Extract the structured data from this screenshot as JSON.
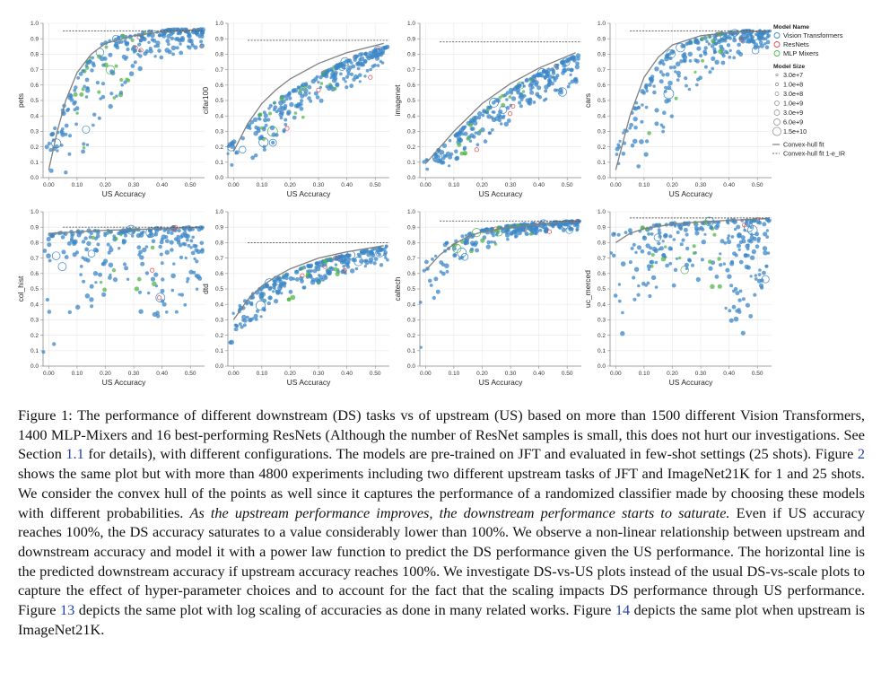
{
  "chart_data": [
    {
      "type": "scatter",
      "ylabel": "pets",
      "xlabel": "US Accuracy",
      "xticks": [
        "0.00",
        "0.10",
        "0.20",
        "0.30",
        "0.40",
        "0.50"
      ],
      "yticks": [
        "0.0",
        "0.1",
        "0.2",
        "0.3",
        "0.4",
        "0.5",
        "0.6",
        "0.7",
        "0.8",
        "0.9",
        "1.0"
      ],
      "xlim": [
        -0.02,
        0.55
      ],
      "ylim": [
        0,
        1
      ],
      "hull_asymptote": 0.95,
      "hull_points": [
        [
          0.0,
          0.05
        ],
        [
          0.03,
          0.3
        ],
        [
          0.06,
          0.5
        ],
        [
          0.1,
          0.68
        ],
        [
          0.15,
          0.8
        ],
        [
          0.2,
          0.87
        ],
        [
          0.3,
          0.92
        ],
        [
          0.4,
          0.945
        ],
        [
          0.53,
          0.96
        ]
      ],
      "point_band": {
        "min_y": [
          0.0,
          0.0,
          0.25,
          0.55,
          0.75,
          0.8,
          0.85
        ],
        "max_y": [
          0.15,
          0.55,
          0.85,
          0.92,
          0.95,
          0.96,
          0.96
        ]
      }
    },
    {
      "type": "scatter",
      "ylabel": "cifar100",
      "xlabel": "US Accuracy",
      "xticks": [
        "0.00",
        "0.10",
        "0.20",
        "0.30",
        "0.40",
        "0.50"
      ],
      "yticks": [
        "0.0",
        "0.1",
        "0.2",
        "0.3",
        "0.4",
        "0.5",
        "0.6",
        "0.7",
        "0.8",
        "0.9",
        "1.0"
      ],
      "xlim": [
        -0.02,
        0.55
      ],
      "ylim": [
        0,
        1
      ],
      "hull_asymptote": 0.89,
      "hull_points": [
        [
          0.0,
          0.17
        ],
        [
          0.05,
          0.35
        ],
        [
          0.1,
          0.48
        ],
        [
          0.15,
          0.57
        ],
        [
          0.2,
          0.64
        ],
        [
          0.3,
          0.74
        ],
        [
          0.4,
          0.81
        ],
        [
          0.53,
          0.87
        ]
      ],
      "point_band": {
        "min_y": [
          0.05,
          0.12,
          0.25,
          0.4,
          0.55,
          0.62,
          0.7
        ],
        "max_y": [
          0.2,
          0.38,
          0.52,
          0.62,
          0.72,
          0.8,
          0.85
        ]
      }
    },
    {
      "type": "scatter",
      "ylabel": "imagenet",
      "xlabel": "US Accuracy",
      "xticks": [
        "0.00",
        "0.10",
        "0.20",
        "0.30",
        "0.40",
        "0.50"
      ],
      "yticks": [
        "0.0",
        "0.1",
        "0.2",
        "0.3",
        "0.4",
        "0.5",
        "0.6",
        "0.7",
        "0.8",
        "0.9",
        "1.0"
      ],
      "xlim": [
        -0.02,
        0.55
      ],
      "ylim": [
        0,
        1
      ],
      "hull_asymptote": 0.88,
      "hull_points": [
        [
          0.0,
          0.09
        ],
        [
          0.1,
          0.3
        ],
        [
          0.2,
          0.48
        ],
        [
          0.3,
          0.61
        ],
        [
          0.4,
          0.71
        ],
        [
          0.53,
          0.81
        ]
      ],
      "point_band": {
        "min_y": [
          0.0,
          0.05,
          0.15,
          0.3,
          0.42,
          0.52,
          0.6
        ],
        "max_y": [
          0.08,
          0.22,
          0.38,
          0.52,
          0.63,
          0.72,
          0.8
        ]
      }
    },
    {
      "type": "scatter",
      "ylabel": "cars",
      "xlabel": "US Accuracy",
      "xticks": [
        "0.00",
        "0.10",
        "0.20",
        "0.30",
        "0.40",
        "0.50"
      ],
      "yticks": [
        "0.0",
        "0.1",
        "0.2",
        "0.3",
        "0.4",
        "0.5",
        "0.6",
        "0.7",
        "0.8",
        "0.9",
        "1.0"
      ],
      "xlim": [
        -0.02,
        0.55
      ],
      "ylim": [
        0,
        1
      ],
      "hull_asymptote": 0.95,
      "hull_points": [
        [
          0.0,
          0.05
        ],
        [
          0.05,
          0.4
        ],
        [
          0.1,
          0.65
        ],
        [
          0.15,
          0.78
        ],
        [
          0.2,
          0.86
        ],
        [
          0.3,
          0.92
        ],
        [
          0.4,
          0.94
        ],
        [
          0.53,
          0.95
        ]
      ],
      "point_band": {
        "min_y": [
          0.0,
          0.05,
          0.3,
          0.55,
          0.72,
          0.8,
          0.85
        ],
        "max_y": [
          0.1,
          0.5,
          0.78,
          0.88,
          0.93,
          0.95,
          0.95
        ]
      }
    },
    {
      "type": "scatter",
      "ylabel": "col_hist",
      "xlabel": "US Accuracy",
      "xticks": [
        "0.00",
        "0.10",
        "0.20",
        "0.30",
        "0.40",
        "0.50"
      ],
      "yticks": [
        "0.0",
        "0.1",
        "0.2",
        "0.3",
        "0.4",
        "0.5",
        "0.6",
        "0.7",
        "0.8",
        "0.9",
        "1.0"
      ],
      "xlim": [
        -0.02,
        0.55
      ],
      "ylim": [
        0,
        1
      ],
      "hull_asymptote": 0.9,
      "hull_points": [
        [
          0.0,
          0.86
        ],
        [
          0.1,
          0.87
        ],
        [
          0.2,
          0.88
        ],
        [
          0.3,
          0.885
        ],
        [
          0.4,
          0.89
        ],
        [
          0.53,
          0.9
        ]
      ],
      "point_band": {
        "min_y": [
          0.0,
          0.3,
          0.4,
          0.45,
          0.3,
          0.3,
          0.55
        ],
        "max_y": [
          0.85,
          0.87,
          0.88,
          0.88,
          0.89,
          0.9,
          0.9
        ]
      }
    },
    {
      "type": "scatter",
      "ylabel": "dtd",
      "xlabel": "US Accuracy",
      "xticks": [
        "0.00",
        "0.10",
        "0.20",
        "0.30",
        "0.40",
        "0.50"
      ],
      "yticks": [
        "0.0",
        "0.1",
        "0.2",
        "0.3",
        "0.4",
        "0.5",
        "0.6",
        "0.7",
        "0.8",
        "0.9",
        "1.0"
      ],
      "xlim": [
        -0.02,
        0.55
      ],
      "ylim": [
        0,
        1
      ],
      "hull_asymptote": 0.8,
      "hull_points": [
        [
          0.0,
          0.3
        ],
        [
          0.05,
          0.43
        ],
        [
          0.1,
          0.52
        ],
        [
          0.15,
          0.58
        ],
        [
          0.2,
          0.63
        ],
        [
          0.3,
          0.7
        ],
        [
          0.4,
          0.74
        ],
        [
          0.53,
          0.78
        ]
      ],
      "point_band": {
        "min_y": [
          0.1,
          0.25,
          0.4,
          0.5,
          0.58,
          0.62,
          0.66
        ],
        "max_y": [
          0.32,
          0.48,
          0.58,
          0.65,
          0.7,
          0.74,
          0.78
        ]
      }
    },
    {
      "type": "scatter",
      "ylabel": "caltech",
      "xlabel": "US Accuracy",
      "xticks": [
        "0.00",
        "0.10",
        "0.20",
        "0.30",
        "0.40",
        "0.50"
      ],
      "yticks": [
        "0.0",
        "0.1",
        "0.2",
        "0.3",
        "0.4",
        "0.5",
        "0.6",
        "0.7",
        "0.8",
        "0.9",
        "1.0"
      ],
      "xlim": [
        -0.02,
        0.55
      ],
      "ylim": [
        0,
        1
      ],
      "hull_asymptote": 0.94,
      "hull_points": [
        [
          0.0,
          0.62
        ],
        [
          0.05,
          0.72
        ],
        [
          0.1,
          0.79
        ],
        [
          0.15,
          0.84
        ],
        [
          0.2,
          0.87
        ],
        [
          0.3,
          0.9
        ],
        [
          0.4,
          0.92
        ],
        [
          0.53,
          0.94
        ]
      ],
      "point_band": {
        "min_y": [
          0.0,
          0.55,
          0.72,
          0.8,
          0.85,
          0.87,
          0.88
        ],
        "max_y": [
          0.65,
          0.8,
          0.87,
          0.9,
          0.92,
          0.93,
          0.94
        ]
      }
    },
    {
      "type": "scatter",
      "ylabel": "uc_merced",
      "xlabel": "US Accuracy",
      "xticks": [
        "0.00",
        "0.10",
        "0.20",
        "0.30",
        "0.40",
        "0.50"
      ],
      "yticks": [
        "0.0",
        "0.1",
        "0.2",
        "0.3",
        "0.4",
        "0.5",
        "0.6",
        "0.7",
        "0.8",
        "0.9",
        "1.0"
      ],
      "xlim": [
        -0.02,
        0.55
      ],
      "ylim": [
        0,
        1
      ],
      "hull_asymptote": 0.96,
      "hull_points": [
        [
          0.0,
          0.8
        ],
        [
          0.05,
          0.86
        ],
        [
          0.1,
          0.89
        ],
        [
          0.2,
          0.92
        ],
        [
          0.3,
          0.935
        ],
        [
          0.4,
          0.945
        ],
        [
          0.53,
          0.955
        ]
      ],
      "point_band": {
        "min_y": [
          0.0,
          0.4,
          0.5,
          0.55,
          0.3,
          0.2,
          0.6
        ],
        "max_y": [
          0.85,
          0.9,
          0.92,
          0.93,
          0.94,
          0.95,
          0.95
        ]
      }
    }
  ],
  "legend": {
    "model_name_title": "Model Name",
    "models": [
      {
        "label": "Vision Transformers",
        "color": "#3b87c7"
      },
      {
        "label": "ResNets",
        "color": "#e04848"
      },
      {
        "label": "MLP Mixers",
        "color": "#53b54a"
      }
    ],
    "model_size_title": "Model Size",
    "sizes": [
      {
        "label": "3.0e+7",
        "r": 1.2
      },
      {
        "label": "1.0e+8",
        "r": 1.6
      },
      {
        "label": "3.0e+8",
        "r": 2.0
      },
      {
        "label": "1.0e+9",
        "r": 2.5
      },
      {
        "label": "3.0e+9",
        "r": 3.0
      },
      {
        "label": "6.0e+9",
        "r": 3.5
      },
      {
        "label": "1.5e+10",
        "r": 4.6
      }
    ],
    "lines": [
      {
        "label": "Convex-hull fit",
        "style": "solid"
      },
      {
        "label": "Convex-hull fit 1-e_IR",
        "style": "dashed"
      }
    ]
  },
  "colors": {
    "vit": "#3b87c7",
    "resnet": "#e04848",
    "mixer": "#53b54a",
    "fit_line": "#808080",
    "axis": "#888888",
    "grid": "#e8e8e8"
  },
  "caption": {
    "p1": "Figure 1: The performance of different downstream (DS) tasks vs of upstream (US) based on more than 1500 different Vision Transformers, 1400 MLP-Mixers and 16 best-performing ResNets (Although the number of ResNet samples is small, this does not hurt our investigations. See Section ",
    "ref1": "1.1",
    "p2": " for details), with different configurations. The models are pre-trained on JFT and evaluated in few-shot settings (25 shots). Figure ",
    "ref2": "2",
    "p3": " shows the same plot but with more than 4800 experiments including two different upstream tasks of JFT and ImageNet21K for 1 and 25 shots. We consider the convex hull of the points as well since it captures the performance of a randomized classifier made by choosing these models with different probabilities. ",
    "italic": "As the upstream performance improves, the downstream performance starts to saturate.",
    "p4": " Even if US accuracy reaches 100%, the DS accuracy saturates to a value considerably lower than 100%. We observe a non-linear relationship between upstream and downstream accuracy and model it with a power law function to predict the DS performance given the US performance. The horizontal line is the predicted downstream accuracy if upstream accuracy reaches 100%. We investigate DS-vs-US plots instead of the usual DS-vs-scale plots to capture the effect of hyper-parameter choices and to account for the fact that the scaling impacts DS performance through US performance. Figure ",
    "ref3": "13",
    "p5": " depicts the same plot with log scaling of accuracies as done in many related works. Figure ",
    "ref4": "14",
    "p6": " depicts the same plot when upstream is ImageNet21K."
  }
}
